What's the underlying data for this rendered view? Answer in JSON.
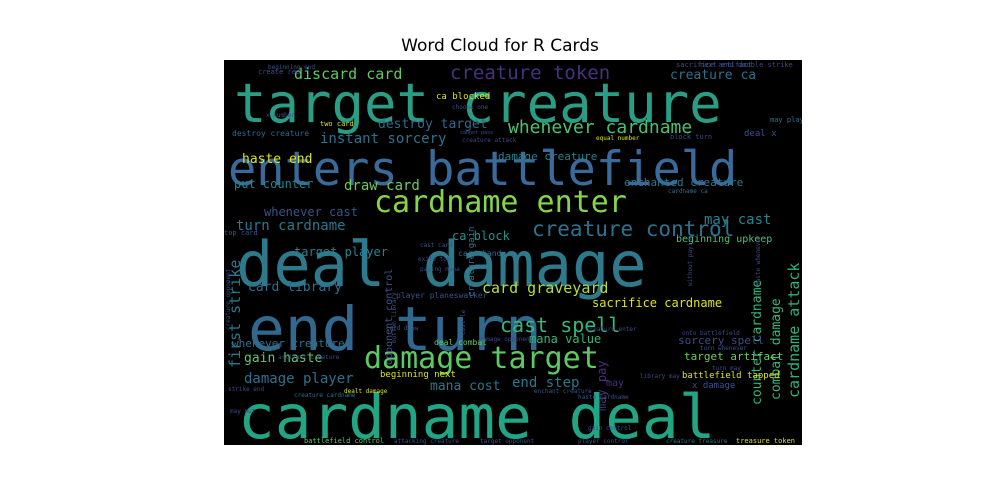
{
  "chart_data": {
    "type": "wordcloud",
    "title": "Word Cloud for R Cards",
    "background": "#000000",
    "colormap": "viridis",
    "words": [
      {
        "text": "target creature",
        "color": "#2a9d85"
      },
      {
        "text": "enters battlefield",
        "color": "#3a6a9a"
      },
      {
        "text": "deal damage",
        "color": "#2e7a8c"
      },
      {
        "text": "end turn",
        "color": "#31688e"
      },
      {
        "text": "cardname deal",
        "color": "#21a585"
      },
      {
        "text": "cardname enter",
        "color": "#86d549"
      },
      {
        "text": "damage target",
        "color": "#5ec962"
      },
      {
        "text": "creature control",
        "color": "#2c728e"
      },
      {
        "text": "whenever cardname",
        "color": "#4ac16d"
      },
      {
        "text": "creature token",
        "color": "#46327e"
      },
      {
        "text": "discard card",
        "color": "#5ec962"
      },
      {
        "text": "cast spell",
        "color": "#35b779"
      },
      {
        "text": "card graveyard",
        "color": "#b5de2b"
      },
      {
        "text": "draw card",
        "color": "#6ccd5a"
      },
      {
        "text": "first strike",
        "color": "#2a788e"
      },
      {
        "text": "gain haste",
        "color": "#5ec962"
      },
      {
        "text": "damage player",
        "color": "#2d708e"
      },
      {
        "text": "cardname attack",
        "color": "#2db27d"
      },
      {
        "text": "combat damage",
        "color": "#35b779"
      },
      {
        "text": "counter cardname",
        "color": "#2fb47c"
      },
      {
        "text": "destroy target",
        "color": "#31688e"
      },
      {
        "text": "instant sorcery",
        "color": "#2c728e"
      },
      {
        "text": "haste end",
        "color": "#dde318"
      },
      {
        "text": "turn cardname",
        "color": "#2a788e"
      },
      {
        "text": "creature ca",
        "color": "#2c728e"
      },
      {
        "text": "may cast",
        "color": "#26828e"
      },
      {
        "text": "end step",
        "color": "#2a788e"
      },
      {
        "text": "sacrifice cardname",
        "color": "#dde318"
      },
      {
        "text": "card library",
        "color": "#2d708e"
      },
      {
        "text": "damage creature",
        "color": "#26828e"
      },
      {
        "text": "enchanted creature",
        "color": "#2a788e"
      },
      {
        "text": "put counter",
        "color": "#25838e"
      },
      {
        "text": "whenever cast",
        "color": "#3b528b"
      },
      {
        "text": "target player",
        "color": "#26828e"
      },
      {
        "text": "ca block",
        "color": "#20928c"
      },
      {
        "text": "mana value",
        "color": "#35b779"
      },
      {
        "text": "mana cost",
        "color": "#2a788e"
      },
      {
        "text": "may pay",
        "color": "#46327e"
      },
      {
        "text": "whenever creature",
        "color": "#2d708e"
      },
      {
        "text": "sorcery spell",
        "color": "#3e4a89"
      },
      {
        "text": "target artifact",
        "color": "#6ece58"
      },
      {
        "text": "battlefield tapped",
        "color": "#dde318"
      },
      {
        "text": "beginning upkeep",
        "color": "#4ac16d"
      },
      {
        "text": "ca blocked",
        "color": "#dde318"
      },
      {
        "text": "deal x",
        "color": "#3b528b"
      },
      {
        "text": "may play",
        "color": "#2c728e"
      },
      {
        "text": "opponent control",
        "color": "#3b528b"
      },
      {
        "text": "card hand",
        "color": "#2c728e"
      },
      {
        "text": "creature gain",
        "color": "#2a788e"
      },
      {
        "text": "deal combat",
        "color": "#5ec962"
      },
      {
        "text": "beginning next",
        "color": "#dde318"
      },
      {
        "text": "x damage",
        "color": "#3b528b"
      },
      {
        "text": "may",
        "color": "#46327e"
      },
      {
        "text": "player planeswalker",
        "color": "#3b528b"
      },
      {
        "text": "cardname ca",
        "color": "#2c728e"
      },
      {
        "text": "two card",
        "color": "#dde318"
      },
      {
        "text": "x number",
        "color": "#3e4a89"
      },
      {
        "text": "choose one",
        "color": "#3b528b"
      },
      {
        "text": "equal number",
        "color": "#dde318"
      },
      {
        "text": "creature attack",
        "color": "#3e4a89"
      },
      {
        "text": "cannot pass",
        "color": "#3b528b"
      },
      {
        "text": "block turn",
        "color": "#3e4a89"
      },
      {
        "text": "destroy creature",
        "color": "#31688e"
      },
      {
        "text": "double strike",
        "color": "#3e4a89"
      },
      {
        "text": "sacrifice artifact",
        "color": "#3e4a89"
      },
      {
        "text": "next end",
        "color": "#3b528b"
      },
      {
        "text": "create red",
        "color": "#3b528b"
      },
      {
        "text": "beginning end",
        "color": "#3b528b"
      },
      {
        "text": "top card",
        "color": "#3b528b"
      },
      {
        "text": "cast card",
        "color": "#3b528b"
      },
      {
        "text": "exile top",
        "color": "#3e4a89"
      },
      {
        "text": "paying mana",
        "color": "#3e4a89"
      },
      {
        "text": "creature opponent",
        "color": "#3b528b"
      },
      {
        "text": "bottom library",
        "color": "#3b528b"
      },
      {
        "text": "cost le",
        "color": "#3b528b"
      },
      {
        "text": "card draw",
        "color": "#3b528b"
      },
      {
        "text": "damage opponent",
        "color": "#3e4a89"
      },
      {
        "text": "creature enter",
        "color": "#3e4a89"
      },
      {
        "text": "onto battlefield",
        "color": "#3e4a89"
      },
      {
        "text": "turn whenever",
        "color": "#3b528b"
      },
      {
        "text": "without paying",
        "color": "#3e4a89"
      },
      {
        "text": "haste whenever",
        "color": "#3e4a89"
      },
      {
        "text": "library may",
        "color": "#3e4a89"
      },
      {
        "text": "turn may",
        "color": "#3e4a89"
      },
      {
        "text": "artifact creature",
        "color": "#3e4a89"
      },
      {
        "text": "creature cardname",
        "color": "#2c728e"
      },
      {
        "text": "dealt damage",
        "color": "#dde318"
      },
      {
        "text": "enchant creature",
        "color": "#3b528b"
      },
      {
        "text": "haste cardname",
        "color": "#3b528b"
      },
      {
        "text": "strike end",
        "color": "#3e4a89"
      },
      {
        "text": "gain control",
        "color": "#3b528b"
      },
      {
        "text": "may put",
        "color": "#3e4a89"
      },
      {
        "text": "battlefield control",
        "color": "#5ec962"
      },
      {
        "text": "attacking creature",
        "color": "#3b528b"
      },
      {
        "text": "target opponent",
        "color": "#3b528b"
      },
      {
        "text": "player control",
        "color": "#3b528b"
      },
      {
        "text": "creature treasure",
        "color": "#2c728e"
      },
      {
        "text": "treasure token",
        "color": "#dde318"
      }
    ]
  }
}
